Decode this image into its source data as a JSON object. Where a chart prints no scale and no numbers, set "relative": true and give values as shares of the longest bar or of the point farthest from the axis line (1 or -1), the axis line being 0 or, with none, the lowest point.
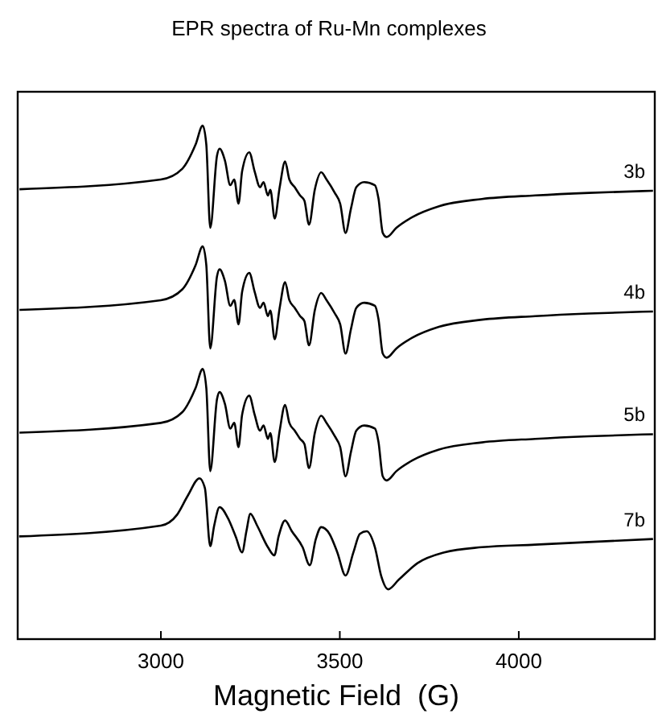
{
  "chart_data": {
    "type": "line",
    "title": "EPR spectra of Ru-Mn complexes",
    "xlabel": "Magnetic Field  (G)",
    "relative": true,
    "xlim": [
      2600,
      4380
    ],
    "xticks": [
      3000,
      3500,
      4000
    ],
    "grid": false,
    "legend": false,
    "marker": "none",
    "line_style": "solid",
    "series": [
      {
        "name": "3b",
        "color": "#000000",
        "x": [
          2605,
          3000,
          3060,
          3097,
          3117,
          3127,
          3138,
          3157,
          3164,
          3179,
          3194,
          3205,
          3217,
          3227,
          3247,
          3262,
          3277,
          3287,
          3299,
          3306,
          3318,
          3332,
          3347,
          3359,
          3374,
          3389,
          3401,
          3414,
          3430,
          3448,
          3463,
          3486,
          3501,
          3516,
          3531,
          3546,
          3568,
          3598,
          3608,
          3620,
          3631,
          3658,
          3703,
          3777,
          3897,
          4046,
          4196,
          4375
        ],
        "values": [
          0.876,
          0.895,
          0.916,
          0.963,
          1.0,
          0.963,
          0.801,
          0.942,
          0.955,
          0.932,
          0.884,
          0.895,
          0.848,
          0.911,
          0.948,
          0.911,
          0.88,
          0.89,
          0.864,
          0.875,
          0.819,
          0.88,
          0.93,
          0.895,
          0.88,
          0.864,
          0.854,
          0.807,
          0.875,
          0.909,
          0.895,
          0.869,
          0.848,
          0.791,
          0.838,
          0.88,
          0.89,
          0.884,
          0.858,
          0.791,
          0.783,
          0.801,
          0.822,
          0.843,
          0.857,
          0.864,
          0.869,
          0.873
        ]
      },
      {
        "name": "4b",
        "color": "#000000",
        "x": [
          2605,
          3000,
          3060,
          3097,
          3117,
          3127,
          3138,
          3157,
          3164,
          3179,
          3194,
          3205,
          3217,
          3227,
          3247,
          3262,
          3277,
          3287,
          3299,
          3306,
          3318,
          3332,
          3347,
          3359,
          3374,
          3389,
          3401,
          3414,
          3430,
          3448,
          3463,
          3486,
          3501,
          3516,
          3531,
          3546,
          3568,
          3598,
          3608,
          3620,
          3631,
          3658,
          3703,
          3777,
          3897,
          4046,
          4196,
          4375
        ],
        "values": [
          0.641,
          0.66,
          0.681,
          0.728,
          0.765,
          0.728,
          0.566,
          0.707,
          0.72,
          0.697,
          0.649,
          0.66,
          0.613,
          0.676,
          0.713,
          0.676,
          0.645,
          0.655,
          0.629,
          0.64,
          0.584,
          0.645,
          0.695,
          0.66,
          0.645,
          0.629,
          0.619,
          0.572,
          0.64,
          0.674,
          0.66,
          0.634,
          0.613,
          0.556,
          0.603,
          0.645,
          0.655,
          0.649,
          0.623,
          0.556,
          0.548,
          0.566,
          0.587,
          0.608,
          0.622,
          0.629,
          0.634,
          0.638
        ]
      },
      {
        "name": "5b",
        "color": "#000000",
        "x": [
          2605,
          3000,
          3060,
          3097,
          3117,
          3127,
          3138,
          3157,
          3164,
          3179,
          3194,
          3205,
          3217,
          3227,
          3247,
          3262,
          3277,
          3287,
          3299,
          3306,
          3318,
          3332,
          3347,
          3359,
          3374,
          3389,
          3401,
          3414,
          3430,
          3448,
          3463,
          3486,
          3501,
          3516,
          3531,
          3546,
          3568,
          3598,
          3608,
          3620,
          3631,
          3658,
          3703,
          3777,
          3897,
          4046,
          4196,
          4375
        ],
        "values": [
          0.402,
          0.421,
          0.442,
          0.489,
          0.526,
          0.489,
          0.327,
          0.468,
          0.481,
          0.458,
          0.41,
          0.421,
          0.374,
          0.437,
          0.474,
          0.437,
          0.406,
          0.416,
          0.39,
          0.401,
          0.345,
          0.406,
          0.456,
          0.421,
          0.406,
          0.39,
          0.38,
          0.333,
          0.401,
          0.435,
          0.421,
          0.395,
          0.374,
          0.317,
          0.364,
          0.406,
          0.416,
          0.41,
          0.384,
          0.317,
          0.309,
          0.327,
          0.348,
          0.369,
          0.383,
          0.39,
          0.395,
          0.399
        ]
      },
      {
        "name": "7b",
        "color": "#000000",
        "x": [
          2604,
          3000,
          3045,
          3075,
          3108,
          3123,
          3138,
          3149,
          3164,
          3187,
          3209,
          3227,
          3239,
          3250,
          3269,
          3299,
          3317,
          3329,
          3347,
          3366,
          3396,
          3416,
          3433,
          3448,
          3471,
          3493,
          3516,
          3538,
          3556,
          3575,
          3598,
          3616,
          3635,
          3665,
          3717,
          3792,
          3897,
          4046,
          4196,
          4375
        ],
        "values": [
          0.2,
          0.221,
          0.242,
          0.279,
          0.313,
          0.294,
          0.181,
          0.221,
          0.257,
          0.236,
          0.2,
          0.169,
          0.21,
          0.244,
          0.221,
          0.179,
          0.163,
          0.2,
          0.231,
          0.21,
          0.179,
          0.144,
          0.195,
          0.218,
          0.205,
          0.169,
          0.124,
          0.169,
          0.205,
          0.21,
          0.179,
          0.122,
          0.097,
          0.116,
          0.148,
          0.169,
          0.179,
          0.184,
          0.189,
          0.195
        ]
      }
    ]
  }
}
